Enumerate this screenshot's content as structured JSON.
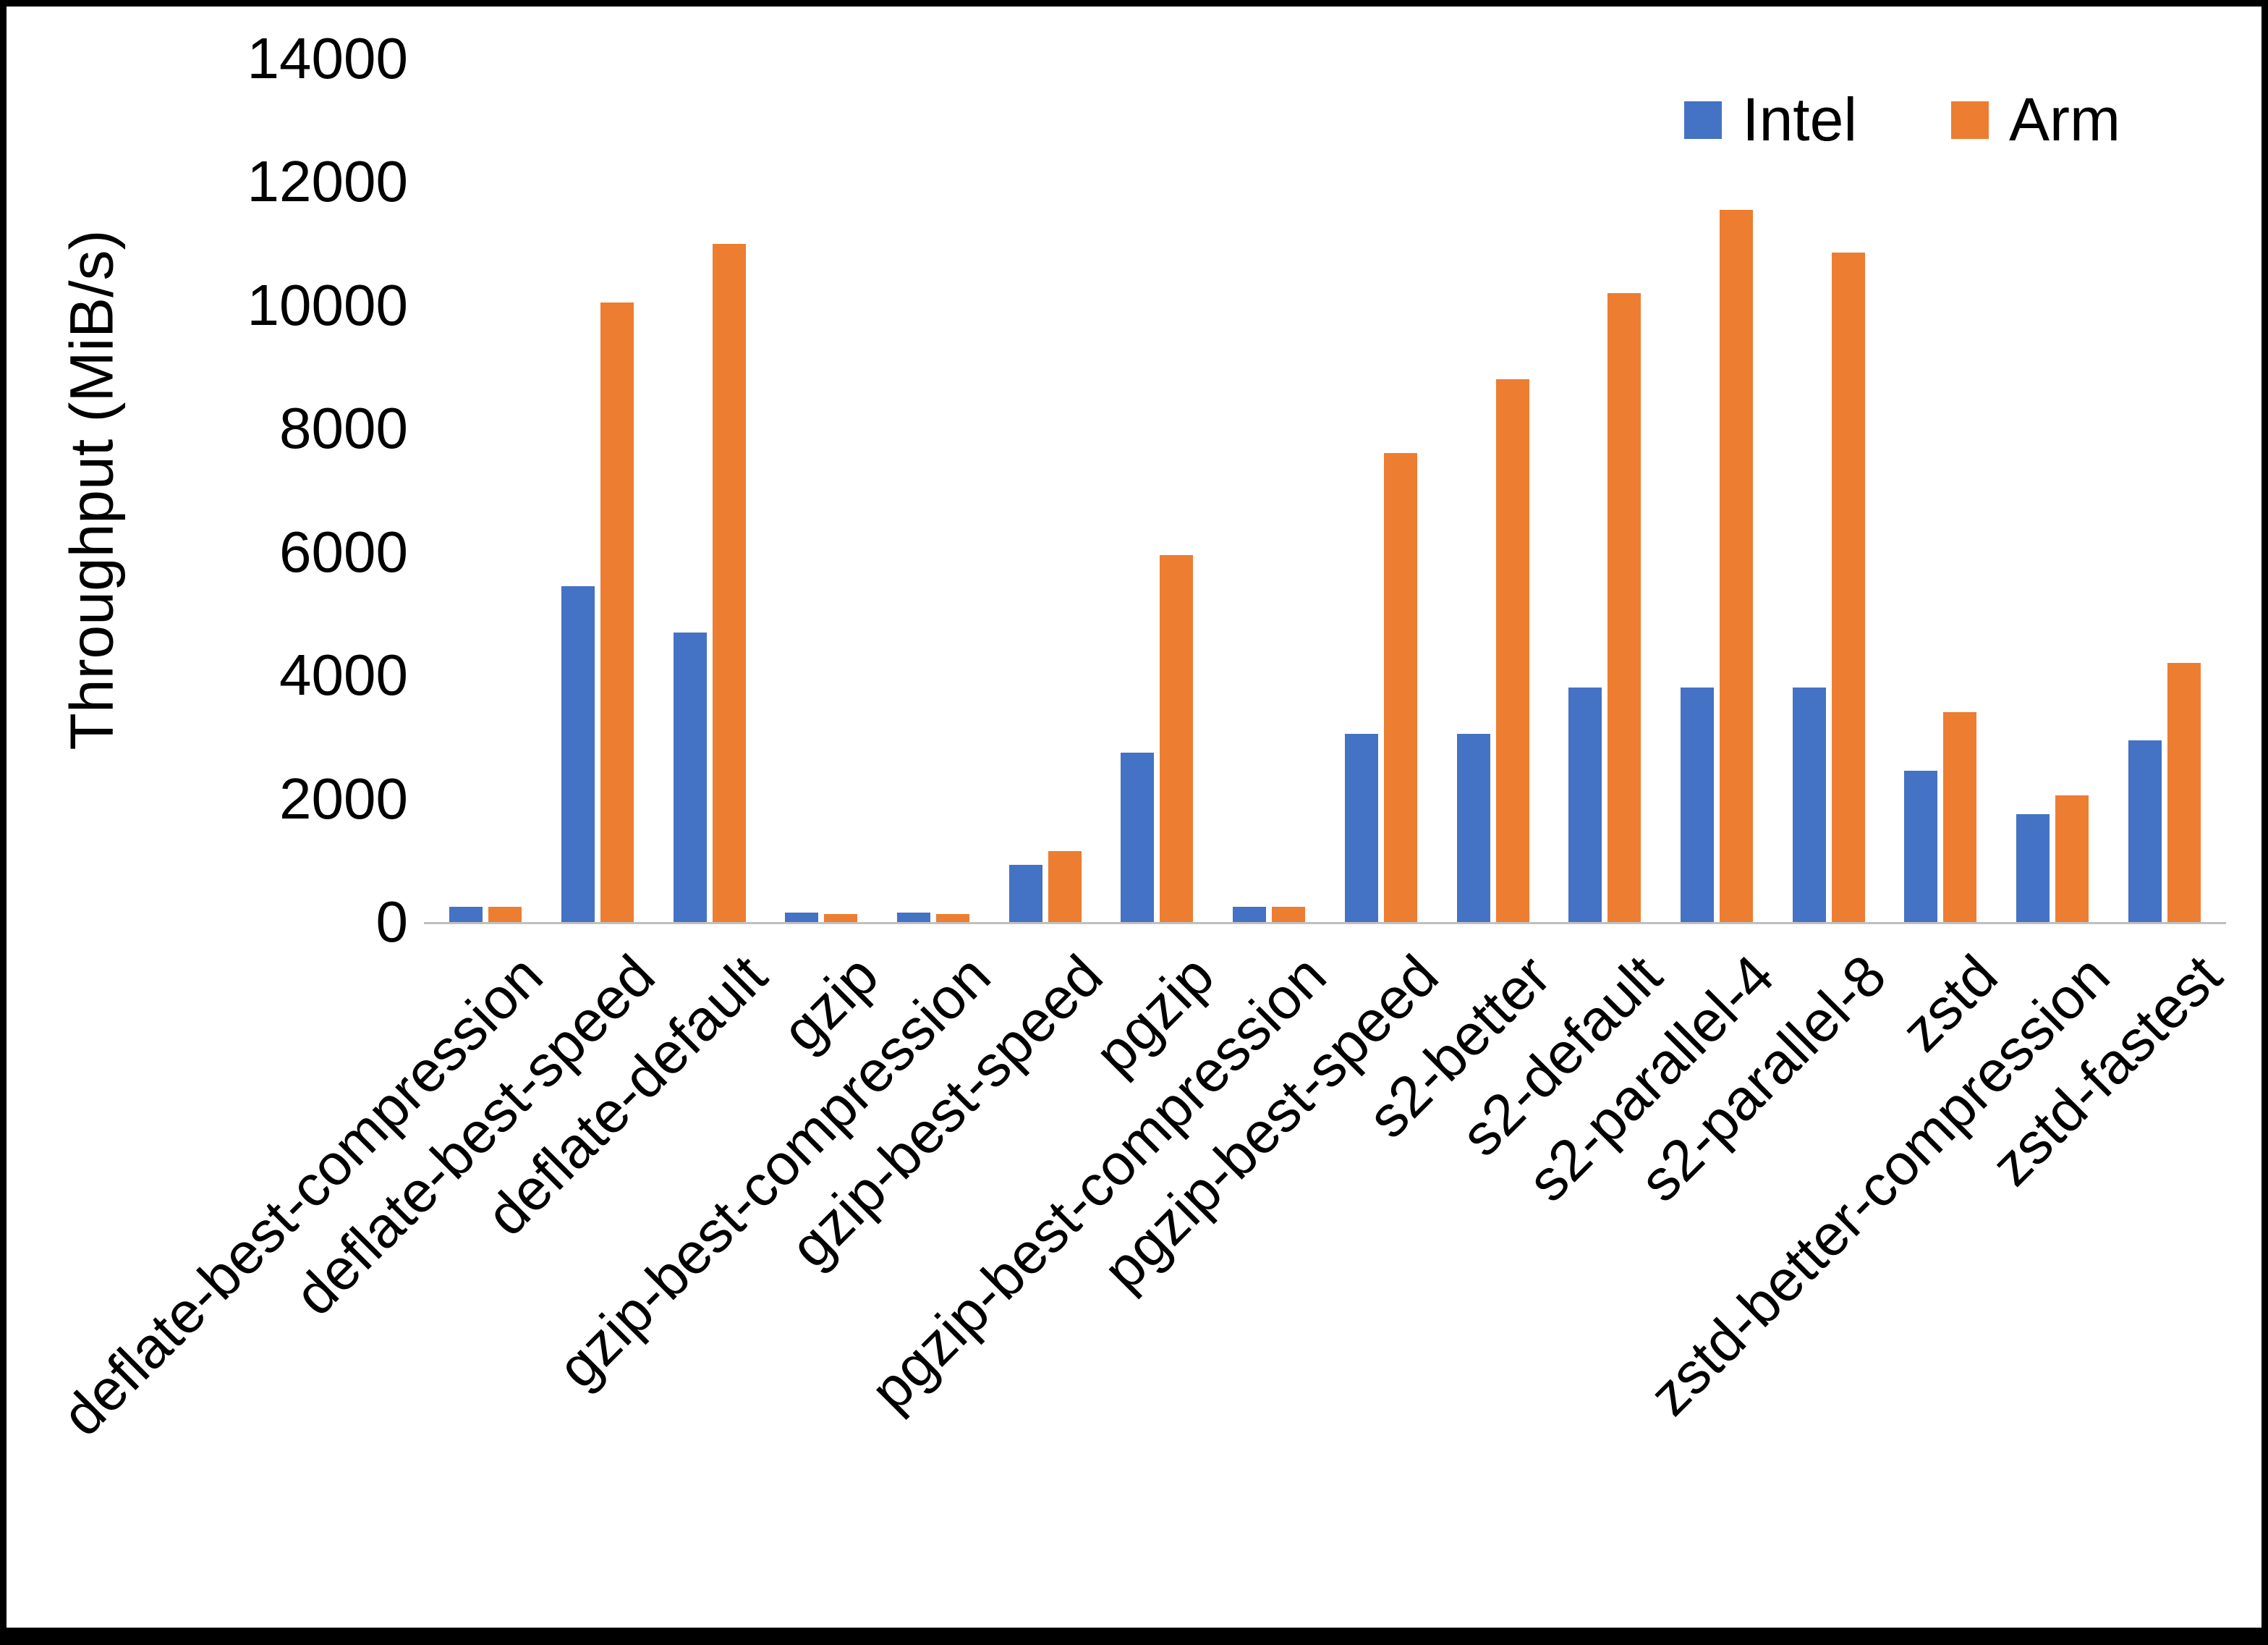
{
  "chart_data": {
    "type": "bar",
    "title": "",
    "xlabel": "",
    "ylabel": "Throughput (MiB/s)",
    "ylim": [
      0,
      14000
    ],
    "ytick_step": 2000,
    "grid": false,
    "legend_position": "top-right",
    "categories": [
      "deflate-best-compression",
      "deflate-best-speed",
      "deflate-default",
      "gzip",
      "gzip-best-compression",
      "gzip-best-speed",
      "pgzip",
      "pgzip-best-compression",
      "pgzip-best-speed",
      "s2-better",
      "s2-default",
      "s2-parallel-4",
      "s2-parallel-8",
      "zstd",
      "zstd-better-compression",
      "zstd-fastest"
    ],
    "series": [
      {
        "name": "Intel",
        "color": "#4472C4",
        "values": [
          250,
          5450,
          4700,
          150,
          150,
          930,
          2750,
          250,
          3050,
          3050,
          3800,
          3800,
          3800,
          2450,
          1750,
          2950
        ]
      },
      {
        "name": "Arm",
        "color": "#ED7D31",
        "values": [
          250,
          10050,
          11000,
          130,
          130,
          1150,
          5950,
          250,
          7600,
          8800,
          10200,
          11550,
          10850,
          3400,
          2050,
          4200
        ]
      }
    ]
  }
}
